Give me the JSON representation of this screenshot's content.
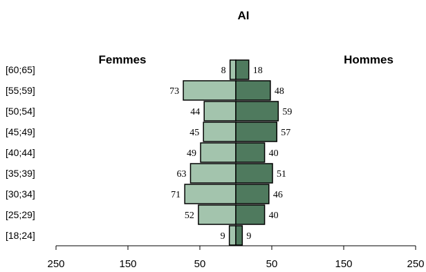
{
  "chart_data": {
    "type": "bar",
    "orientation": "horizontal-population-pyramid",
    "title": "AI",
    "left_label": "Femmes",
    "right_label": "Hommes",
    "categories": [
      "[18;24]",
      "[25;29]",
      "[30;34]",
      "[35;39]",
      "[40;44]",
      "[45;49]",
      "[50;54]",
      "[55;59]",
      "[60;65]"
    ],
    "series": [
      {
        "name": "Femmes",
        "side": "left",
        "color": "#a3c4ad",
        "values": [
          9,
          52,
          71,
          63,
          49,
          45,
          44,
          73,
          8
        ]
      },
      {
        "name": "Hommes",
        "side": "right",
        "color": "#4f7a5e",
        "values": [
          9,
          40,
          46,
          51,
          40,
          57,
          59,
          48,
          18
        ]
      }
    ],
    "xlim": [
      -250,
      250
    ],
    "x_ticks": [
      {
        "value": -250,
        "label": "250"
      },
      {
        "value": -150,
        "label": "150"
      },
      {
        "value": -50,
        "label": "50"
      },
      {
        "value": 50,
        "label": "50"
      },
      {
        "value": 150,
        "label": "150"
      },
      {
        "value": 250,
        "label": "250"
      }
    ],
    "grid": false
  }
}
